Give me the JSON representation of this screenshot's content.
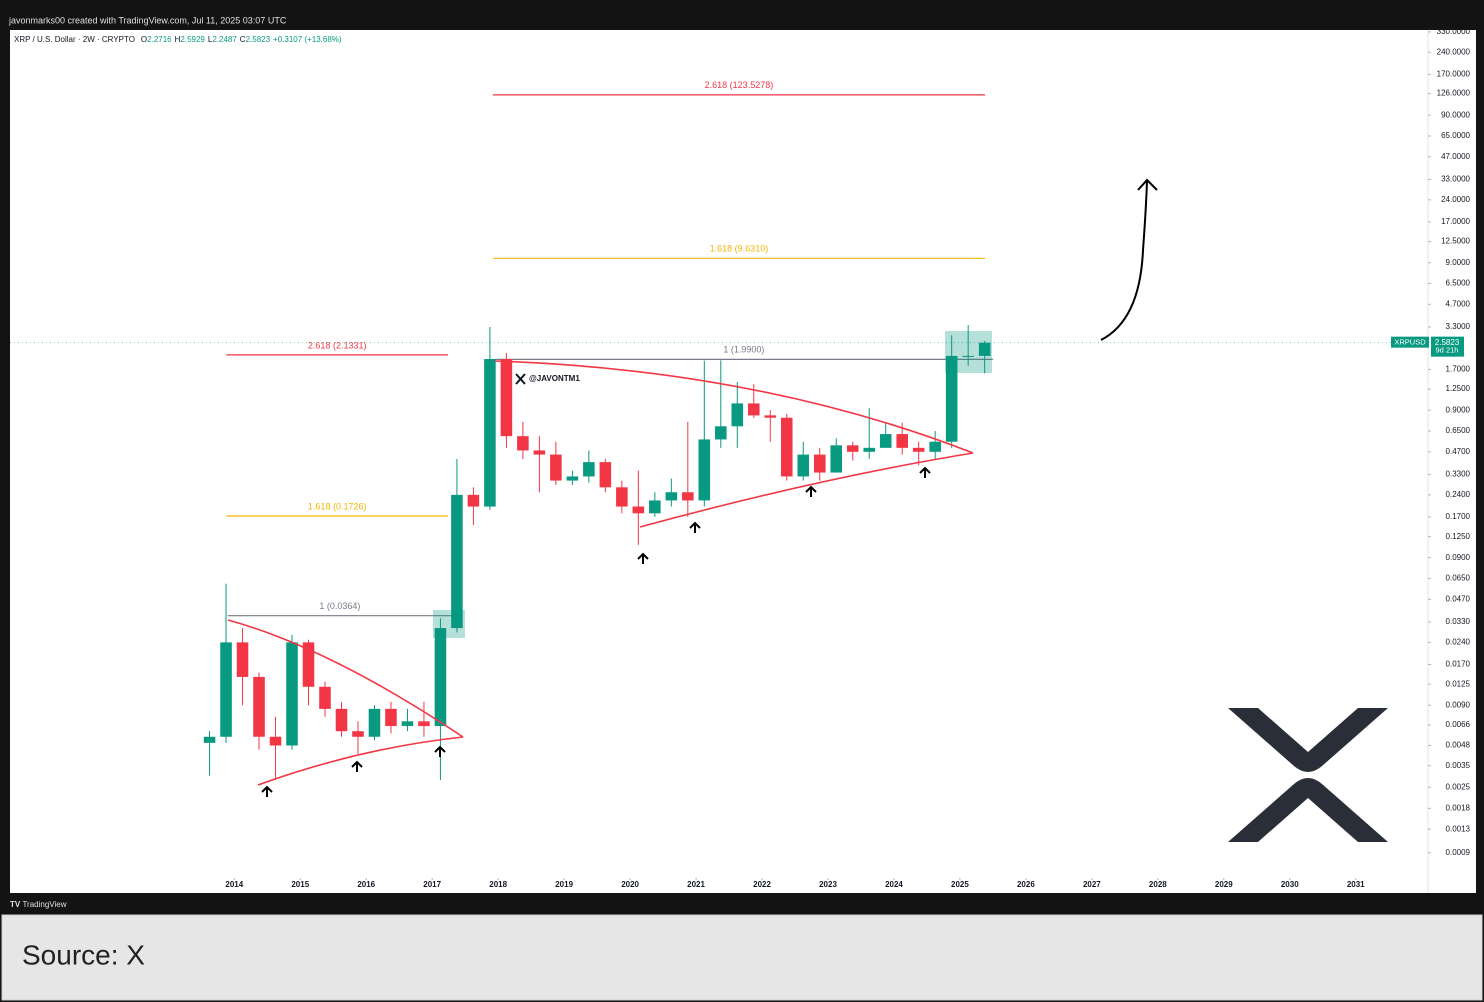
{
  "header": "javonmarks00 created with TradingView.com, Jul 11, 2025 03:07 UTC",
  "legend": {
    "symbol": "XRP / U.S. Dollar · 2W · CRYPTO",
    "ohlc": [
      {
        "label": "O",
        "value": 2.2716
      },
      {
        "label": "H",
        "value": 2.5929
      },
      {
        "label": "L",
        "value": 2.2487
      },
      {
        "label": "C",
        "value": 2.5823
      }
    ],
    "change": "+0.3107 (+13.68%)"
  },
  "watermark": "@JAVONTM1",
  "price_tag": {
    "symbol": "XRPUSD",
    "value": 2.5823,
    "countdown": "9d 21h"
  },
  "footer": "TradingView",
  "source": "Source: X",
  "chart_data": {
    "type": "candlestick",
    "log_scale": true,
    "up_color": "#089981",
    "down_color": "#f23645",
    "x": [
      2013.625,
      2013.875,
      2014.125,
      2014.375,
      2014.625,
      2014.875,
      2015.125,
      2015.375,
      2015.625,
      2015.875,
      2016.125,
      2016.375,
      2016.625,
      2016.875,
      2017.125,
      2017.375,
      2017.625,
      2017.875,
      2018.125,
      2018.375,
      2018.625,
      2018.875,
      2019.125,
      2019.375,
      2019.625,
      2019.875,
      2020.125,
      2020.375,
      2020.625,
      2020.875,
      2021.125,
      2021.375,
      2021.625,
      2021.875,
      2022.125,
      2022.375,
      2022.625,
      2022.875,
      2023.125,
      2023.375,
      2023.625,
      2023.875,
      2024.125,
      2024.375,
      2024.625,
      2024.875,
      2025.125,
      2025.375
    ],
    "open": [
      0.005,
      0.0055,
      0.024,
      0.014,
      0.0055,
      0.0048,
      0.024,
      0.012,
      0.0085,
      0.006,
      0.0055,
      0.0085,
      0.0065,
      0.007,
      0.0065,
      0.03,
      0.24,
      0.2,
      2.0,
      0.6,
      0.48,
      0.45,
      0.3,
      0.32,
      0.4,
      0.27,
      0.2,
      0.18,
      0.22,
      0.25,
      0.22,
      0.57,
      0.7,
      1.0,
      0.83,
      0.8,
      0.32,
      0.45,
      0.34,
      0.52,
      0.47,
      0.5,
      0.62,
      0.5,
      0.47,
      0.55,
      2.1,
      2.1
    ],
    "high": [
      0.006,
      0.06,
      0.03,
      0.015,
      0.0075,
      0.027,
      0.025,
      0.013,
      0.0095,
      0.007,
      0.009,
      0.0095,
      0.0085,
      0.0095,
      0.035,
      0.42,
      0.27,
      3.3,
      2.2,
      0.75,
      0.6,
      0.55,
      0.35,
      0.48,
      0.42,
      0.3,
      0.35,
      0.25,
      0.31,
      0.75,
      1.95,
      1.96,
      1.4,
      1.35,
      0.9,
      0.85,
      0.55,
      0.5,
      0.58,
      0.55,
      0.93,
      0.75,
      0.74,
      0.55,
      0.65,
      2.9,
      3.4,
      2.65
    ],
    "low": [
      0.003,
      0.005,
      0.009,
      0.0045,
      0.0028,
      0.0045,
      0.009,
      0.0075,
      0.0055,
      0.0042,
      0.0052,
      0.0058,
      0.006,
      0.0055,
      0.0028,
      0.028,
      0.15,
      0.19,
      0.5,
      0.42,
      0.25,
      0.28,
      0.28,
      0.29,
      0.25,
      0.18,
      0.11,
      0.17,
      0.2,
      0.17,
      0.2,
      0.5,
      0.5,
      0.8,
      0.55,
      0.3,
      0.3,
      0.3,
      0.34,
      0.41,
      0.42,
      0.5,
      0.45,
      0.38,
      0.42,
      0.5,
      1.8,
      1.6
    ],
    "close": [
      0.0055,
      0.024,
      0.014,
      0.0055,
      0.0048,
      0.024,
      0.012,
      0.0085,
      0.006,
      0.0055,
      0.0085,
      0.0065,
      0.007,
      0.0065,
      0.03,
      0.24,
      0.2,
      2.0,
      0.6,
      0.48,
      0.45,
      0.3,
      0.32,
      0.4,
      0.27,
      0.2,
      0.18,
      0.22,
      0.25,
      0.22,
      0.57,
      0.7,
      1.0,
      0.83,
      0.8,
      0.32,
      0.45,
      0.34,
      0.52,
      0.47,
      0.5,
      0.62,
      0.5,
      0.47,
      0.55,
      2.1,
      2.1,
      2.58
    ],
    "xlim": [
      2010.6,
      2032.05
    ],
    "xticks": [
      2014,
      2015,
      2016,
      2017,
      2018,
      2019,
      2020,
      2021,
      2022,
      2023,
      2024,
      2025,
      2026,
      2027,
      2028,
      2029,
      2030,
      2031
    ],
    "ylim": [
      0.00048,
      340
    ],
    "yticks": [
      {
        "value": 330,
        "label": "330.0000"
      },
      {
        "value": 240,
        "label": "240.0000"
      },
      {
        "value": 170,
        "label": "170.0000"
      },
      {
        "value": 126,
        "label": "126.0000"
      },
      {
        "value": 90,
        "label": "90.0000"
      },
      {
        "value": 65,
        "label": "65.0000"
      },
      {
        "value": 47,
        "label": "47.0000"
      },
      {
        "value": 33,
        "label": "33.0000"
      },
      {
        "value": 24,
        "label": "24.0000"
      },
      {
        "value": 17,
        "label": "17.0000"
      },
      {
        "value": 12.5,
        "label": "12.5000"
      },
      {
        "value": 9,
        "label": "9.0000"
      },
      {
        "value": 6.5,
        "label": "6.5000"
      },
      {
        "value": 4.7,
        "label": "4.7000"
      },
      {
        "value": 3.3,
        "label": "3.3000"
      },
      {
        "value": 1.7,
        "label": "1.7000"
      },
      {
        "value": 1.25,
        "label": "1.2500"
      },
      {
        "value": 0.9,
        "label": "0.9000"
      },
      {
        "value": 0.65,
        "label": "0.6500"
      },
      {
        "value": 0.47,
        "label": "0.4700"
      },
      {
        "value": 0.33,
        "label": "0.3300"
      },
      {
        "value": 0.24,
        "label": "0.2400"
      },
      {
        "value": 0.17,
        "label": "0.1700"
      },
      {
        "value": 0.125,
        "label": "0.1250"
      },
      {
        "value": 0.09,
        "label": "0.0900"
      },
      {
        "value": 0.065,
        "label": "0.0650"
      },
      {
        "value": 0.047,
        "label": "0.0470"
      },
      {
        "value": 0.033,
        "label": "0.0330"
      },
      {
        "value": 0.024,
        "label": "0.0240"
      },
      {
        "value": 0.017,
        "label": "0.0170"
      },
      {
        "value": 0.0125,
        "label": "0.0125"
      },
      {
        "value": 0.009,
        "label": "0.0090"
      },
      {
        "value": 0.0066,
        "label": "0.0066"
      },
      {
        "value": 0.0048,
        "label": "0.0048"
      },
      {
        "value": 0.0035,
        "label": "0.0035"
      },
      {
        "value": 0.0025,
        "label": "0.0025"
      },
      {
        "value": 0.0018,
        "label": "0.0018"
      },
      {
        "value": 0.0013,
        "label": "0.0013"
      },
      {
        "value": 0.0009,
        "label": "0.0009"
      }
    ],
    "levels": [
      {
        "label": "2.618 (123.5278)",
        "value": 123.5278,
        "x": [
          2017.92,
          2025.38
        ],
        "color": "#f23645"
      },
      {
        "label": "1.618 (9.6310)",
        "value": 9.631,
        "x": [
          2017.92,
          2025.38
        ],
        "color": "#f5b400"
      },
      {
        "label": "1 (1.9900)",
        "value": 1.99,
        "x": [
          2017.95,
          2025.5
        ],
        "color": "#787b86"
      },
      {
        "label": "2.618 (2.1331)",
        "value": 2.1331,
        "x": [
          2013.88,
          2017.24
        ],
        "color": "#f23645"
      },
      {
        "label": "1.618 (0.1726)",
        "value": 0.1726,
        "x": [
          2013.88,
          2017.24
        ],
        "color": "#f5b400"
      },
      {
        "label": "1 (0.0364)",
        "value": 0.0364,
        "x": [
          2013.9,
          2017.3
        ],
        "color": "#787b86"
      }
    ]
  }
}
